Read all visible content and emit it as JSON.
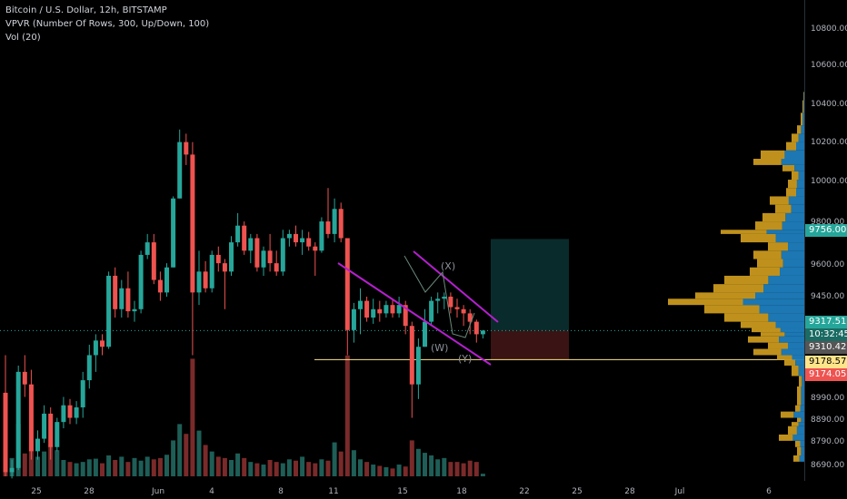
{
  "legend": {
    "symbol_line": "Bitcoin / U.S. Dollar, 12h, BITSTAMP",
    "vpvr_line": "VPVR (Number Of Rows, 300, Up/Down, 100)",
    "vol_line": "Vol (20)"
  },
  "price_axis": {
    "ticks": [
      "10800.00",
      "10600.00",
      "10400.00",
      "10200.00",
      "10000.00",
      "9800.00",
      "9600.00",
      "9450.00",
      "9310.42",
      "8990.00",
      "8890.00",
      "8790.00",
      "8690.00"
    ]
  },
  "time_axis": {
    "ticks": [
      "25",
      "28",
      "Jun",
      "4",
      "8",
      "11",
      "15",
      "18",
      "22",
      "25",
      "28",
      "Jul",
      "6"
    ]
  },
  "price_labels": {
    "target": "9756.00",
    "current": "9317.51",
    "countdown": "10:32:45",
    "level": "9310.42",
    "yellow_line": "9178.57",
    "stop": "9174.05"
  },
  "wave_labels": [
    "(X)",
    "(W)",
    "(Y)"
  ],
  "colors": {
    "up": "#26a69a",
    "down": "#ef5350",
    "vol_up": "#1e5e57",
    "vol_down": "#7a2a2a",
    "channel": "#b51fcf",
    "vpvr_up": "#1e7dbd",
    "vpvr_down": "#c9991e",
    "yellow_line": "#ffe58a",
    "target_zone": "#0a2b2b",
    "stop_zone": "#3a1414"
  },
  "chart_data": {
    "type": "candlestick",
    "interval": "12h",
    "y_range": [
      8620,
      10900
    ],
    "ohlc": [
      [
        9020,
        9200,
        8620,
        8640
      ],
      [
        8640,
        8700,
        8610,
        8660
      ],
      [
        8660,
        9150,
        8650,
        9120
      ],
      [
        9120,
        9200,
        9000,
        9060
      ],
      [
        9060,
        9130,
        8700,
        8740
      ],
      [
        8740,
        8840,
        8700,
        8800
      ],
      [
        8800,
        8960,
        8780,
        8920
      ],
      [
        8920,
        8950,
        8700,
        8760
      ],
      [
        8760,
        8900,
        8740,
        8880
      ],
      [
        8880,
        9000,
        8850,
        8960
      ],
      [
        8960,
        8990,
        8870,
        8900
      ],
      [
        8900,
        8980,
        8870,
        8950
      ],
      [
        8950,
        9120,
        8900,
        9080
      ],
      [
        9080,
        9250,
        9040,
        9200
      ],
      [
        9200,
        9300,
        9120,
        9270
      ],
      [
        9270,
        9300,
        9200,
        9240
      ],
      [
        9240,
        9600,
        9230,
        9580
      ],
      [
        9580,
        9620,
        9380,
        9420
      ],
      [
        9420,
        9560,
        9380,
        9520
      ],
      [
        9520,
        9600,
        9380,
        9410
      ],
      [
        9410,
        9460,
        9360,
        9420
      ],
      [
        9420,
        9700,
        9400,
        9680
      ],
      [
        9680,
        9780,
        9660,
        9740
      ],
      [
        9740,
        9780,
        9540,
        9560
      ],
      [
        9560,
        9600,
        9460,
        9500
      ],
      [
        9500,
        9640,
        9480,
        9620
      ],
      [
        9620,
        9960,
        9620,
        9950
      ],
      [
        9950,
        10280,
        9950,
        10220
      ],
      [
        10220,
        10260,
        10110,
        10160
      ],
      [
        10160,
        10220,
        9200,
        9500
      ],
      [
        9500,
        9700,
        9440,
        9600
      ],
      [
        9600,
        9650,
        9500,
        9520
      ],
      [
        9520,
        9700,
        9500,
        9680
      ],
      [
        9680,
        9720,
        9600,
        9640
      ],
      [
        9640,
        9660,
        9420,
        9600
      ],
      [
        9600,
        9770,
        9580,
        9740
      ],
      [
        9740,
        9880,
        9720,
        9820
      ],
      [
        9820,
        9840,
        9680,
        9700
      ],
      [
        9700,
        9780,
        9640,
        9760
      ],
      [
        9760,
        9780,
        9600,
        9620
      ],
      [
        9620,
        9720,
        9580,
        9700
      ],
      [
        9700,
        9780,
        9600,
        9640
      ],
      [
        9640,
        9700,
        9580,
        9600
      ],
      [
        9600,
        9800,
        9580,
        9760
      ],
      [
        9760,
        9800,
        9720,
        9780
      ],
      [
        9780,
        9820,
        9720,
        9740
      ],
      [
        9740,
        9800,
        9680,
        9760
      ],
      [
        9760,
        9790,
        9700,
        9720
      ],
      [
        9720,
        9740,
        9580,
        9700
      ],
      [
        9700,
        9860,
        9690,
        9840
      ],
      [
        9840,
        10000,
        9760,
        9780
      ],
      [
        9780,
        9950,
        9740,
        9900
      ],
      [
        9900,
        9930,
        9740,
        9760
      ],
      [
        9760,
        9760,
        9200,
        9320
      ],
      [
        9320,
        9450,
        9260,
        9420
      ],
      [
        9420,
        9520,
        9300,
        9460
      ],
      [
        9460,
        9480,
        9360,
        9380
      ],
      [
        9380,
        9470,
        9350,
        9420
      ],
      [
        9420,
        9460,
        9360,
        9400
      ],
      [
        9400,
        9460,
        9380,
        9440
      ],
      [
        9440,
        9470,
        9380,
        9400
      ],
      [
        9400,
        9480,
        9380,
        9440
      ],
      [
        9440,
        9460,
        9300,
        9340
      ],
      [
        9340,
        9360,
        8900,
        9060
      ],
      [
        9060,
        9280,
        8990,
        9240
      ],
      [
        9240,
        9420,
        9240,
        9360
      ],
      [
        9360,
        9480,
        9340,
        9460
      ],
      [
        9460,
        9500,
        9400,
        9470
      ],
      [
        9470,
        9500,
        9420,
        9480
      ],
      [
        9480,
        9500,
        9400,
        9430
      ],
      [
        9430,
        9470,
        9380,
        9420
      ],
      [
        9420,
        9440,
        9340,
        9400
      ],
      [
        9400,
        9420,
        9300,
        9360
      ],
      [
        9360,
        9370,
        9260,
        9300
      ],
      [
        9300,
        9320,
        9280,
        9317.51
      ]
    ],
    "volume": [
      40,
      28,
      80,
      35,
      55,
      30,
      38,
      48,
      40,
      25,
      22,
      20,
      22,
      26,
      27,
      20,
      32,
      25,
      30,
      22,
      28,
      24,
      30,
      26,
      28,
      33,
      55,
      80,
      65,
      180,
      70,
      48,
      38,
      30,
      28,
      25,
      35,
      28,
      22,
      20,
      18,
      25,
      22,
      20,
      26,
      24,
      30,
      22,
      20,
      26,
      24,
      52,
      38,
      185,
      40,
      26,
      22,
      18,
      16,
      14,
      12,
      18,
      15,
      55,
      42,
      36,
      32,
      26,
      28,
      22,
      22,
      20,
      24,
      22,
      4
    ],
    "vpvr_profile": [
      [
        8690,
        12
      ],
      [
        8720,
        8
      ],
      [
        8760,
        10
      ],
      [
        8790,
        28
      ],
      [
        8820,
        18
      ],
      [
        8860,
        14
      ],
      [
        8880,
        8
      ],
      [
        8900,
        26
      ],
      [
        8930,
        10
      ],
      [
        8960,
        8
      ],
      [
        9000,
        8
      ],
      [
        9050,
        6
      ],
      [
        9100,
        14
      ],
      [
        9150,
        22
      ],
      [
        9178,
        30
      ],
      [
        9200,
        56
      ],
      [
        9230,
        40
      ],
      [
        9260,
        62
      ],
      [
        9290,
        48
      ],
      [
        9310,
        58
      ],
      [
        9330,
        70
      ],
      [
        9360,
        88
      ],
      [
        9400,
        110
      ],
      [
        9440,
        150
      ],
      [
        9470,
        120
      ],
      [
        9500,
        100
      ],
      [
        9540,
        88
      ],
      [
        9580,
        60
      ],
      [
        9620,
        52
      ],
      [
        9660,
        56
      ],
      [
        9700,
        40
      ],
      [
        9740,
        70
      ],
      [
        9780,
        92
      ],
      [
        9800,
        54
      ],
      [
        9840,
        46
      ],
      [
        9880,
        32
      ],
      [
        9920,
        38
      ],
      [
        9960,
        20
      ],
      [
        10000,
        18
      ],
      [
        10040,
        14
      ],
      [
        10080,
        24
      ],
      [
        10110,
        56
      ],
      [
        10140,
        48
      ],
      [
        10180,
        20
      ],
      [
        10220,
        14
      ],
      [
        10260,
        8
      ],
      [
        10300,
        4
      ],
      [
        10360,
        2
      ],
      [
        10420,
        1
      ]
    ]
  }
}
